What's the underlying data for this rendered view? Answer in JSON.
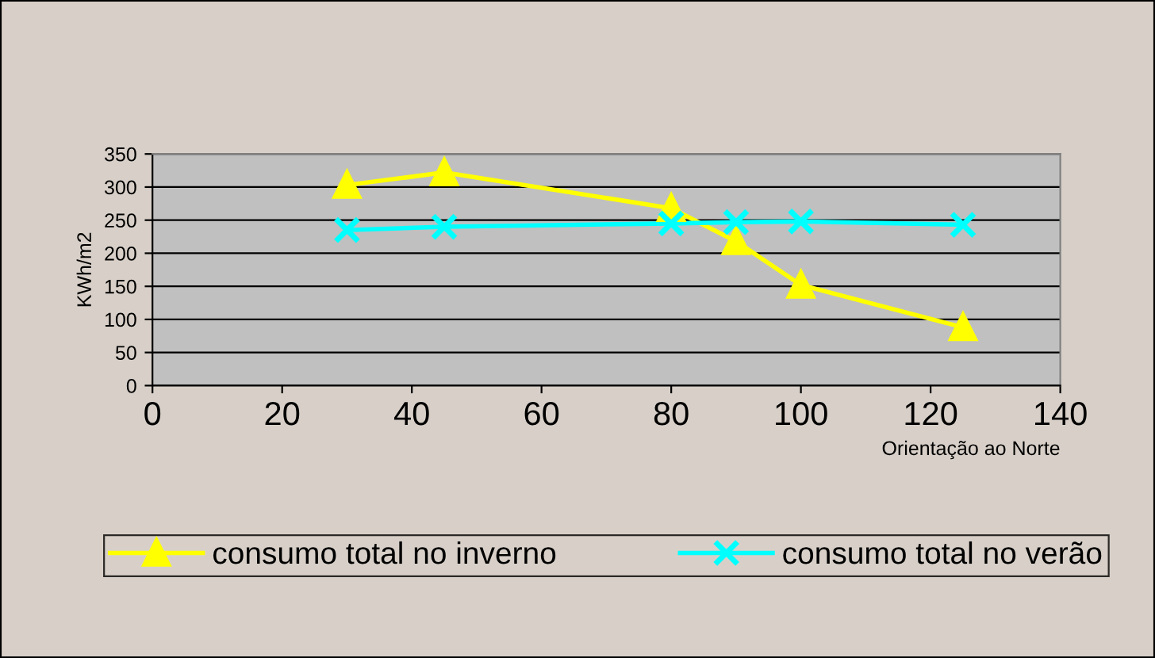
{
  "chart_data": {
    "type": "line",
    "xlabel": "Orientação ao Norte",
    "ylabel": "KWh/m2",
    "x": [
      30,
      45,
      80,
      90,
      100,
      125
    ],
    "series": [
      {
        "name": "consumo total no inverno",
        "color": "#ffff00",
        "marker": "triangle",
        "values": [
          303,
          322,
          268,
          218,
          152,
          88
        ]
      },
      {
        "name": "consumo total no verão",
        "color": "#00ffff",
        "marker": "cross",
        "values": [
          235,
          240,
          245,
          247,
          248,
          243
        ]
      }
    ],
    "xlim": [
      0,
      140
    ],
    "xticks": [
      0,
      20,
      40,
      60,
      80,
      100,
      120,
      140
    ],
    "ylim": [
      0,
      350
    ],
    "yticks": [
      0,
      50,
      100,
      150,
      200,
      250,
      300,
      350
    ],
    "grid": "y",
    "legend": "bottom"
  }
}
